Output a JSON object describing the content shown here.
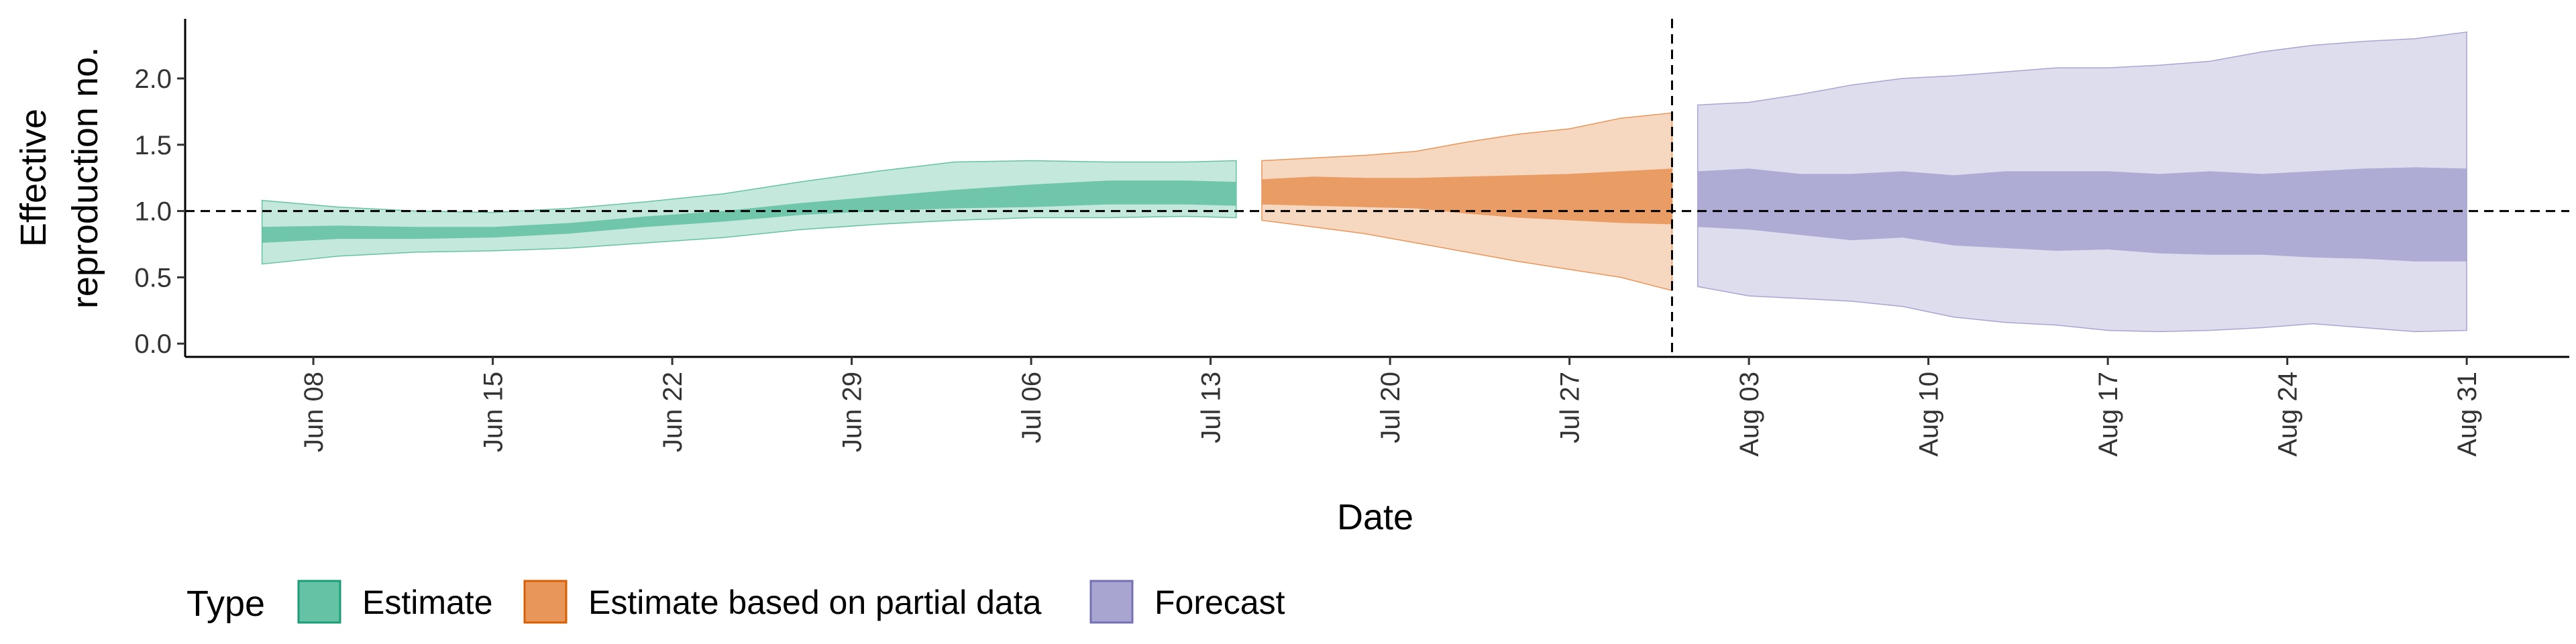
{
  "chart_data": {
    "type": "area",
    "title": "",
    "xlabel": "Date",
    "ylabel_lines": [
      "Effective",
      "reproduction no."
    ],
    "ylim": [
      -0.1,
      2.45
    ],
    "y_ticks": [
      0.0,
      0.5,
      1.0,
      1.5,
      2.0
    ],
    "y_tick_labels": [
      "0.0",
      "0.5",
      "1.0",
      "1.5",
      "2.0"
    ],
    "x_range": [
      "2020-06-03",
      "2020-09-04"
    ],
    "x_ticks": [
      "2020-06-08",
      "2020-06-15",
      "2020-06-22",
      "2020-06-29",
      "2020-07-06",
      "2020-07-13",
      "2020-07-20",
      "2020-07-27",
      "2020-08-03",
      "2020-08-10",
      "2020-08-17",
      "2020-08-24",
      "2020-08-31"
    ],
    "x_tick_labels": [
      "Jun 08",
      "Jun 15",
      "Jun 22",
      "Jun 29",
      "Jul 06",
      "Jul 13",
      "Jul 20",
      "Jul 27",
      "Aug 03",
      "Aug 10",
      "Aug 17",
      "Aug 24",
      "Aug 31"
    ],
    "reference_line_y": 1.0,
    "vertical_line_x": "2020-07-31",
    "legend": {
      "title": "Type",
      "position": "bottom",
      "entries": [
        "Estimate",
        "Estimate based on partial data",
        "Forecast"
      ]
    },
    "colors": {
      "Estimate": "#66c2a5",
      "Estimate based on partial data": "#e8965a",
      "Forecast": "#a8a6d0"
    },
    "series": [
      {
        "name": "Estimate",
        "x": [
          "2020-06-06",
          "2020-06-09",
          "2020-06-12",
          "2020-06-15",
          "2020-06-18",
          "2020-06-21",
          "2020-06-24",
          "2020-06-27",
          "2020-06-30",
          "2020-07-03",
          "2020-07-06",
          "2020-07-09",
          "2020-07-12",
          "2020-07-14"
        ],
        "lower90": [
          0.6,
          0.66,
          0.69,
          0.7,
          0.72,
          0.76,
          0.8,
          0.86,
          0.9,
          0.93,
          0.95,
          0.95,
          0.96,
          0.95
        ],
        "upper90": [
          1.08,
          1.03,
          1.0,
          0.99,
          1.02,
          1.07,
          1.13,
          1.22,
          1.3,
          1.37,
          1.38,
          1.37,
          1.37,
          1.38
        ],
        "lower50": [
          0.76,
          0.79,
          0.79,
          0.8,
          0.83,
          0.88,
          0.92,
          0.97,
          1.0,
          1.02,
          1.03,
          1.05,
          1.05,
          1.04
        ],
        "upper50": [
          0.88,
          0.89,
          0.88,
          0.88,
          0.91,
          0.96,
          1.0,
          1.06,
          1.11,
          1.16,
          1.2,
          1.23,
          1.23,
          1.22
        ]
      },
      {
        "name": "Estimate based on partial data",
        "x": [
          "2020-07-15",
          "2020-07-17",
          "2020-07-19",
          "2020-07-21",
          "2020-07-23",
          "2020-07-25",
          "2020-07-27",
          "2020-07-29",
          "2020-07-31"
        ],
        "lower90": [
          0.93,
          0.88,
          0.83,
          0.76,
          0.69,
          0.62,
          0.56,
          0.5,
          0.4
        ],
        "upper90": [
          1.38,
          1.4,
          1.42,
          1.45,
          1.52,
          1.58,
          1.62,
          1.7,
          1.74
        ],
        "lower50": [
          1.05,
          1.04,
          1.03,
          1.02,
          0.98,
          0.95,
          0.93,
          0.91,
          0.9
        ],
        "upper50": [
          1.24,
          1.26,
          1.25,
          1.25,
          1.26,
          1.27,
          1.28,
          1.3,
          1.32
        ]
      },
      {
        "name": "Forecast",
        "x": [
          "2020-08-01",
          "2020-08-03",
          "2020-08-05",
          "2020-08-07",
          "2020-08-09",
          "2020-08-11",
          "2020-08-13",
          "2020-08-15",
          "2020-08-17",
          "2020-08-19",
          "2020-08-21",
          "2020-08-23",
          "2020-08-25",
          "2020-08-27",
          "2020-08-29",
          "2020-08-31"
        ],
        "lower90": [
          0.43,
          0.36,
          0.34,
          0.32,
          0.28,
          0.2,
          0.16,
          0.14,
          0.1,
          0.09,
          0.1,
          0.12,
          0.15,
          0.12,
          0.09,
          0.1
        ],
        "upper90": [
          1.8,
          1.82,
          1.88,
          1.95,
          2.0,
          2.02,
          2.05,
          2.08,
          2.08,
          2.1,
          2.13,
          2.2,
          2.25,
          2.28,
          2.3,
          2.35
        ],
        "lower50": [
          0.88,
          0.86,
          0.82,
          0.78,
          0.8,
          0.74,
          0.72,
          0.7,
          0.71,
          0.68,
          0.67,
          0.67,
          0.65,
          0.64,
          0.62,
          0.62
        ],
        "upper50": [
          1.3,
          1.32,
          1.28,
          1.28,
          1.3,
          1.27,
          1.3,
          1.3,
          1.3,
          1.28,
          1.3,
          1.28,
          1.3,
          1.32,
          1.33,
          1.32
        ]
      }
    ]
  }
}
